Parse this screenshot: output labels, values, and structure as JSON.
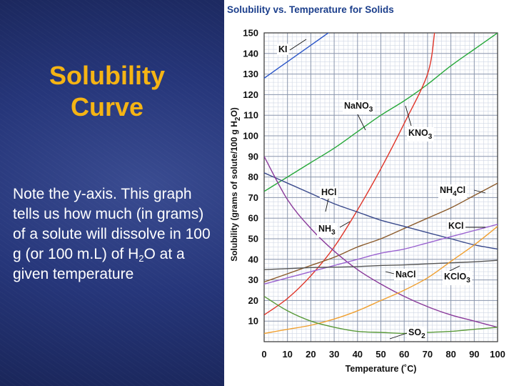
{
  "slide": {
    "title": "Solubility\nCurve",
    "note": {
      "part1": "Note the y-axis.  This graph tells us how much (in grams) of a solute will dissolve in 100 g (or 100 m.L) of H",
      "sub": "2",
      "part2": "O at a given temperature"
    }
  },
  "chart_data": {
    "type": "line",
    "title": "Solubility vs. Temperature for Solids",
    "xlabel": "Temperature (˚C)",
    "ylabel_parts": [
      "Solubility (grams of solute/100 g H",
      "2",
      "O)"
    ],
    "xlim": [
      0,
      100
    ],
    "ylim": [
      0,
      150
    ],
    "xticks": [
      0,
      10,
      20,
      30,
      40,
      50,
      60,
      70,
      80,
      90,
      100
    ],
    "yticks": [
      10,
      20,
      30,
      40,
      50,
      60,
      70,
      80,
      90,
      100,
      110,
      120,
      130,
      140,
      150
    ],
    "grid": true,
    "series": [
      {
        "name": "KI",
        "color": "#2a55c8",
        "x": [
          0,
          10,
          20,
          30
        ],
        "y": [
          128,
          136,
          144,
          152
        ]
      },
      {
        "name": "NaNO3",
        "color": "#27a83a",
        "x": [
          0,
          10,
          20,
          30,
          40,
          50,
          60,
          70,
          80,
          90,
          100
        ],
        "y": [
          73,
          80,
          87,
          94,
          102,
          110,
          117,
          125,
          134,
          142,
          150
        ]
      },
      {
        "name": "KNO3",
        "color": "#e03428",
        "x": [
          0,
          10,
          20,
          30,
          40,
          50,
          60,
          70,
          73
        ],
        "y": [
          13,
          21,
          32,
          46,
          64,
          84,
          106,
          130,
          150
        ]
      },
      {
        "name": "NH4Cl",
        "color": "#8a5a2b",
        "x": [
          0,
          10,
          20,
          30,
          40,
          50,
          60,
          70,
          80,
          90,
          100
        ],
        "y": [
          29,
          33,
          37,
          41,
          46,
          50,
          55,
          60,
          65,
          71,
          77
        ]
      },
      {
        "name": "HCl",
        "color": "#3a4a8c",
        "x": [
          0,
          10,
          20,
          30,
          40,
          50,
          60,
          70,
          80,
          90,
          100
        ],
        "y": [
          82,
          77,
          72,
          67,
          63,
          59,
          56,
          53,
          50,
          47,
          45
        ]
      },
      {
        "name": "NH3",
        "color": "#8a3a9a",
        "x": [
          0,
          10,
          20,
          30,
          40,
          50,
          60,
          70,
          80,
          90,
          100
        ],
        "y": [
          90,
          69,
          55,
          44,
          35,
          28,
          22,
          17,
          13,
          10,
          7
        ]
      },
      {
        "name": "KCl",
        "color": "#9a62d0",
        "x": [
          0,
          10,
          20,
          30,
          40,
          50,
          60,
          70,
          80,
          90,
          100
        ],
        "y": [
          28,
          31,
          34,
          37,
          40,
          43,
          45,
          48,
          51,
          54,
          57
        ]
      },
      {
        "name": "NaCl",
        "color": "#555555",
        "x": [
          0,
          10,
          20,
          30,
          40,
          50,
          60,
          70,
          80,
          90,
          100
        ],
        "y": [
          35,
          35.5,
          36,
          36.2,
          36.5,
          37,
          37.3,
          37.8,
          38.3,
          38.8,
          39.5
        ]
      },
      {
        "name": "KClO3",
        "color": "#f0a030",
        "x": [
          0,
          10,
          20,
          30,
          40,
          50,
          60,
          70,
          80,
          90,
          100
        ],
        "y": [
          4,
          6,
          8,
          11,
          15,
          20,
          25,
          31,
          39,
          47,
          56
        ]
      },
      {
        "name": "SO2",
        "color": "#5a9a3a",
        "x": [
          0,
          10,
          20,
          30,
          40,
          50,
          60,
          70,
          80,
          90,
          100
        ],
        "y": [
          22,
          15,
          10,
          7,
          5,
          4.5,
          4,
          4.5,
          5,
          6,
          7
        ]
      }
    ],
    "annotations": [
      {
        "text": "KI",
        "series": "KI"
      },
      {
        "text": "NaNO",
        "sub": "3",
        "series": "NaNO3"
      },
      {
        "text": "KNO",
        "sub": "3",
        "series": "KNO3"
      },
      {
        "text": "NH",
        "sub": "4",
        "tail": "Cl",
        "series": "NH4Cl"
      },
      {
        "text": "HCl",
        "series": "HCl"
      },
      {
        "text": "NH",
        "sub": "3",
        "series": "NH3"
      },
      {
        "text": "KCl",
        "series": "KCl"
      },
      {
        "text": "NaCl",
        "series": "NaCl"
      },
      {
        "text": "KClO",
        "sub": "3",
        "series": "KClO3"
      },
      {
        "text": "SO",
        "sub": "2",
        "series": "SO2"
      }
    ]
  }
}
